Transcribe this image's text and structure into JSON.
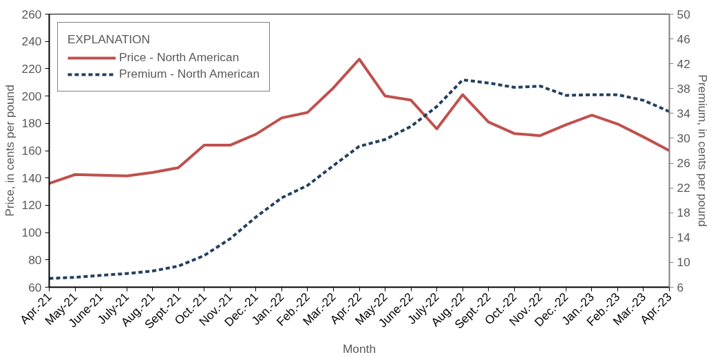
{
  "chart_data": {
    "type": "line",
    "xlabel": "Month",
    "ylabel": "Price, in cents per pound",
    "y2label": "Premium, in cents per pound",
    "legend_title": "EXPLANATION",
    "categories": [
      "Apr.-21",
      "May-21",
      "June-21",
      "July-21",
      "Aug.-21",
      "Sept.-21",
      "Oct.-21",
      "Nov.-21",
      "Dec.-21",
      "Jan.-22",
      "Feb.-22",
      "Mar.-22",
      "Apr.-22",
      "May-22",
      "June-22",
      "July-22",
      "Aug.-22",
      "Sept.-22",
      "Oct.-22",
      "Nov.-22",
      "Dec.-22",
      "Jan.-23",
      "Feb.-23",
      "Mar.-23",
      "Apr.-23"
    ],
    "series": [
      {
        "name": "Price - North American",
        "color": "#c0504d",
        "line_style": "solid",
        "values": [
          136,
          142.5,
          142,
          141.5,
          144,
          147.5,
          164,
          164,
          172,
          184,
          188,
          206,
          227,
          200,
          197,
          176,
          201,
          181,
          172.5,
          171,
          179,
          186,
          179.5,
          170,
          160
        ]
      },
      {
        "name": "Premium - North American",
        "color": "#243f60",
        "line_style": "dashed",
        "axis": "y2",
        "values": [
          7.4,
          7.6,
          7.9,
          8.2,
          8.6,
          9.4,
          11.1,
          13.8,
          17.3,
          20.4,
          22.4,
          25.6,
          28.7,
          29.8,
          31.9,
          35.1,
          39.4,
          38.9,
          38.2,
          38.4,
          36.9,
          37,
          37,
          36.1,
          34.3
        ]
      }
    ],
    "ylim": [
      60,
      260
    ],
    "yticks": [
      60,
      80,
      100,
      120,
      140,
      160,
      180,
      200,
      220,
      240,
      260
    ],
    "y2lim": [
      6,
      50
    ],
    "y2ticks": [
      6,
      10,
      14,
      18,
      22,
      26,
      30,
      34,
      38,
      42,
      46,
      50
    ],
    "grid": false,
    "legend": "top left",
    "marker": "none"
  }
}
